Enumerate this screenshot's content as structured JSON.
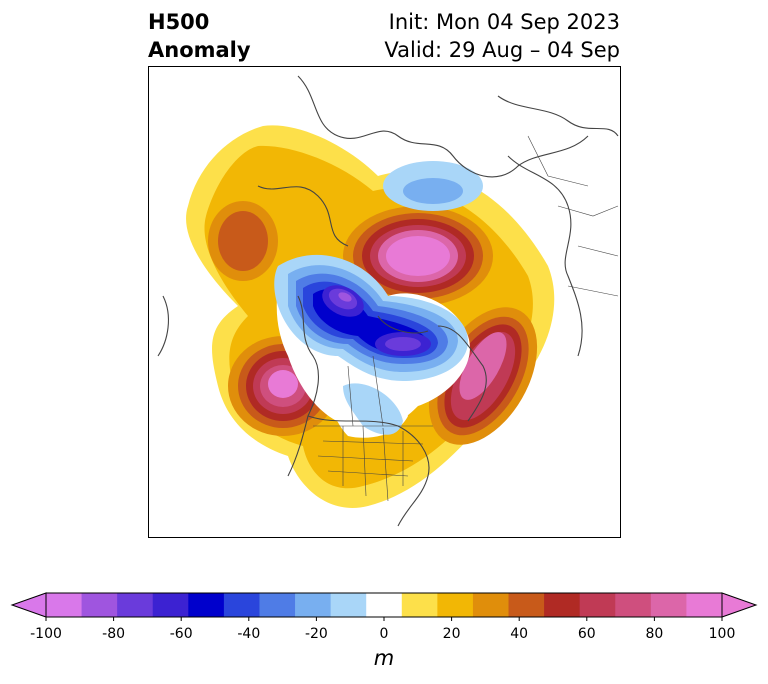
{
  "title": {
    "left_line1": "H500",
    "left_line2": "Anomaly",
    "right_line1": "Init: Mon 04 Sep 2023",
    "right_line2": "Valid: 29 Aug – 04 Sep"
  },
  "map": {
    "projection": "polar stereographic, North America / North Pole",
    "features": [
      {
        "name": "ridge-northeast-pacific",
        "type": "positive",
        "peak": 70
      },
      {
        "name": "ridge-west-canada-pacific",
        "type": "positive",
        "peak": 100
      },
      {
        "name": "ridge-greenland-siberia",
        "type": "positive",
        "peak": 100
      },
      {
        "name": "ridge-north-atlantic",
        "type": "positive",
        "peak": 90
      },
      {
        "name": "trough-arctic",
        "type": "negative",
        "peak": -90
      },
      {
        "name": "trough-scandinavia",
        "type": "negative",
        "peak": -30
      },
      {
        "name": "trough-central-canada",
        "type": "negative",
        "peak": -30
      }
    ]
  },
  "colorbar": {
    "levels": [
      -100,
      -90,
      -80,
      -70,
      -60,
      -50,
      -40,
      -30,
      -20,
      -10,
      10,
      20,
      30,
      40,
      50,
      60,
      70,
      80,
      90,
      100
    ],
    "colors": [
      "#d978ea",
      "#9f55df",
      "#6a3bdb",
      "#3c22d2",
      "#0000cc",
      "#2a45dc",
      "#4f7ce6",
      "#78aff0",
      "#a9d6f8",
      "#ffffff",
      "#fde04a",
      "#f2b705",
      "#e08e0b",
      "#c85a1a",
      "#b02a24",
      "#c03a55",
      "#cf4f7e",
      "#dc66a9",
      "#e87ad6"
    ],
    "under_color": "#d978ea",
    "over_color": "#e87ad6",
    "ticks": [
      "-100",
      "-80",
      "-60",
      "-40",
      "-20",
      "0",
      "20",
      "40",
      "60",
      "80",
      "100"
    ],
    "label": "m"
  }
}
